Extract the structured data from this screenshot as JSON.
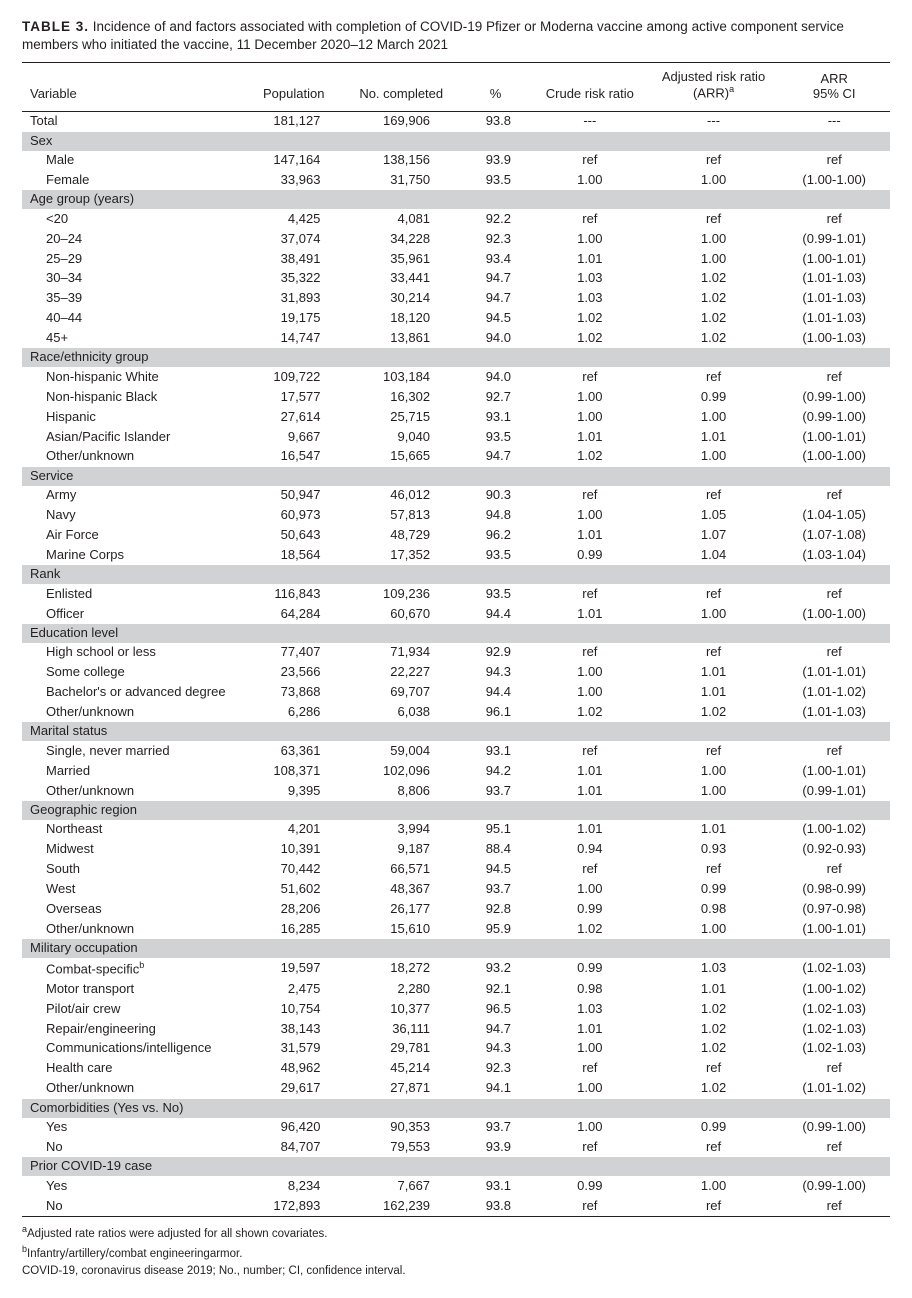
{
  "caption_label": "TABLE 3.",
  "caption_text": " Incidence of and factors associated with completion of COVID-19 Pfizer or Moderna vaccine among active component service members who initiated the vaccine, 11 December 2020–12 March 2021",
  "columns": {
    "variable": "Variable",
    "population": "Population",
    "completed": "No. completed",
    "pct": "%",
    "crude": "Crude risk ratio",
    "arr_l1": "Adjusted risk ratio",
    "arr_l2": "(ARR)",
    "ci_l1": "ARR",
    "ci_l2": "95% CI"
  },
  "sup_a": "a",
  "sup_b": "b",
  "total": {
    "label": "Total",
    "pop": "181,127",
    "comp": "169,906",
    "pct": "93.8",
    "crude": "---",
    "arr": "---",
    "ci": "---"
  },
  "sections": [
    {
      "title": "Sex",
      "rows": [
        {
          "label": "Male",
          "pop": "147,164",
          "comp": "138,156",
          "pct": "93.9",
          "crude": "ref",
          "arr": "ref",
          "ci": "ref"
        },
        {
          "label": "Female",
          "pop": "33,963",
          "comp": "31,750",
          "pct": "93.5",
          "crude": "1.00",
          "arr": "1.00",
          "ci": "(1.00-1.00)"
        }
      ]
    },
    {
      "title": "Age group (years)",
      "rows": [
        {
          "label": "<20",
          "pop": "4,425",
          "comp": "4,081",
          "pct": "92.2",
          "crude": "ref",
          "arr": "ref",
          "ci": "ref"
        },
        {
          "label": "20–24",
          "pop": "37,074",
          "comp": "34,228",
          "pct": "92.3",
          "crude": "1.00",
          "arr": "1.00",
          "ci": "(0.99-1.01)"
        },
        {
          "label": "25–29",
          "pop": "38,491",
          "comp": "35,961",
          "pct": "93.4",
          "crude": "1.01",
          "arr": "1.00",
          "ci": "(1.00-1.01)"
        },
        {
          "label": "30–34",
          "pop": "35,322",
          "comp": "33,441",
          "pct": "94.7",
          "crude": "1.03",
          "arr": "1.02",
          "ci": "(1.01-1.03)"
        },
        {
          "label": "35–39",
          "pop": "31,893",
          "comp": "30,214",
          "pct": "94.7",
          "crude": "1.03",
          "arr": "1.02",
          "ci": "(1.01-1.03)"
        },
        {
          "label": "40–44",
          "pop": "19,175",
          "comp": "18,120",
          "pct": "94.5",
          "crude": "1.02",
          "arr": "1.02",
          "ci": "(1.01-1.03)"
        },
        {
          "label": "45+",
          "pop": "14,747",
          "comp": "13,861",
          "pct": "94.0",
          "crude": "1.02",
          "arr": "1.02",
          "ci": "(1.00-1.03)"
        }
      ]
    },
    {
      "title": "Race/ethnicity group",
      "rows": [
        {
          "label": "Non-hispanic White",
          "pop": "109,722",
          "comp": "103,184",
          "pct": "94.0",
          "crude": "ref",
          "arr": "ref",
          "ci": "ref"
        },
        {
          "label": "Non-hispanic Black",
          "pop": "17,577",
          "comp": "16,302",
          "pct": "92.7",
          "crude": "1.00",
          "arr": "0.99",
          "ci": "(0.99-1.00)"
        },
        {
          "label": "Hispanic",
          "pop": "27,614",
          "comp": "25,715",
          "pct": "93.1",
          "crude": "1.00",
          "arr": "1.00",
          "ci": "(0.99-1.00)"
        },
        {
          "label": "Asian/Pacific Islander",
          "pop": "9,667",
          "comp": "9,040",
          "pct": "93.5",
          "crude": "1.01",
          "arr": "1.01",
          "ci": "(1.00-1.01)"
        },
        {
          "label": "Other/unknown",
          "pop": "16,547",
          "comp": "15,665",
          "pct": "94.7",
          "crude": "1.02",
          "arr": "1.00",
          "ci": "(1.00-1.00)"
        }
      ]
    },
    {
      "title": "Service",
      "rows": [
        {
          "label": "Army",
          "pop": "50,947",
          "comp": "46,012",
          "pct": "90.3",
          "crude": "ref",
          "arr": "ref",
          "ci": "ref"
        },
        {
          "label": "Navy",
          "pop": "60,973",
          "comp": "57,813",
          "pct": "94.8",
          "crude": "1.00",
          "arr": "1.05",
          "ci": "(1.04-1.05)"
        },
        {
          "label": "Air Force",
          "pop": "50,643",
          "comp": "48,729",
          "pct": "96.2",
          "crude": "1.01",
          "arr": "1.07",
          "ci": "(1.07-1.08)"
        },
        {
          "label": "Marine Corps",
          "pop": "18,564",
          "comp": "17,352",
          "pct": "93.5",
          "crude": "0.99",
          "arr": "1.04",
          "ci": "(1.03-1.04)"
        }
      ]
    },
    {
      "title": "Rank",
      "rows": [
        {
          "label": "Enlisted",
          "pop": "116,843",
          "comp": "109,236",
          "pct": "93.5",
          "crude": "ref",
          "arr": "ref",
          "ci": "ref"
        },
        {
          "label": "Officer",
          "pop": "64,284",
          "comp": "60,670",
          "pct": "94.4",
          "crude": "1.01",
          "arr": "1.00",
          "ci": "(1.00-1.00)"
        }
      ]
    },
    {
      "title": "Education level",
      "rows": [
        {
          "label": "High school or less",
          "pop": "77,407",
          "comp": "71,934",
          "pct": "92.9",
          "crude": "ref",
          "arr": "ref",
          "ci": "ref"
        },
        {
          "label": "Some college",
          "pop": "23,566",
          "comp": "22,227",
          "pct": "94.3",
          "crude": "1.00",
          "arr": "1.01",
          "ci": "(1.01-1.01)"
        },
        {
          "label": "Bachelor's or advanced degree",
          "pop": "73,868",
          "comp": "69,707",
          "pct": "94.4",
          "crude": "1.00",
          "arr": "1.01",
          "ci": "(1.01-1.02)"
        },
        {
          "label": "Other/unknown",
          "pop": "6,286",
          "comp": "6,038",
          "pct": "96.1",
          "crude": "1.02",
          "arr": "1.02",
          "ci": "(1.01-1.03)"
        }
      ]
    },
    {
      "title": "Marital status",
      "rows": [
        {
          "label": "Single, never married",
          "pop": "63,361",
          "comp": "59,004",
          "pct": "93.1",
          "crude": "ref",
          "arr": "ref",
          "ci": "ref"
        },
        {
          "label": "Married",
          "pop": "108,371",
          "comp": "102,096",
          "pct": "94.2",
          "crude": "1.01",
          "arr": "1.00",
          "ci": "(1.00-1.01)"
        },
        {
          "label": "Other/unknown",
          "pop": "9,395",
          "comp": "8,806",
          "pct": "93.7",
          "crude": "1.01",
          "arr": "1.00",
          "ci": "(0.99-1.01)"
        }
      ]
    },
    {
      "title": "Geographic region",
      "rows": [
        {
          "label": "Northeast",
          "pop": "4,201",
          "comp": "3,994",
          "pct": "95.1",
          "crude": "1.01",
          "arr": "1.01",
          "ci": "(1.00-1.02)"
        },
        {
          "label": "Midwest",
          "pop": "10,391",
          "comp": "9,187",
          "pct": "88.4",
          "crude": "0.94",
          "arr": "0.93",
          "ci": "(0.92-0.93)"
        },
        {
          "label": "South",
          "pop": "70,442",
          "comp": "66,571",
          "pct": "94.5",
          "crude": "ref",
          "arr": "ref",
          "ci": "ref"
        },
        {
          "label": "West",
          "pop": "51,602",
          "comp": "48,367",
          "pct": "93.7",
          "crude": "1.00",
          "arr": "0.99",
          "ci": "(0.98-0.99)"
        },
        {
          "label": "Overseas",
          "pop": "28,206",
          "comp": "26,177",
          "pct": "92.8",
          "crude": "0.99",
          "arr": "0.98",
          "ci": "(0.97-0.98)"
        },
        {
          "label": "Other/unknown",
          "pop": "16,285",
          "comp": "15,610",
          "pct": "95.9",
          "crude": "1.02",
          "arr": "1.00",
          "ci": "(1.00-1.01)"
        }
      ]
    },
    {
      "title": "Military occupation",
      "rows": [
        {
          "label": "Combat-specific",
          "sup": "b",
          "pop": "19,597",
          "comp": "18,272",
          "pct": "93.2",
          "crude": "0.99",
          "arr": "1.03",
          "ci": "(1.02-1.03)"
        },
        {
          "label": "Motor transport",
          "pop": "2,475",
          "comp": "2,280",
          "pct": "92.1",
          "crude": "0.98",
          "arr": "1.01",
          "ci": "(1.00-1.02)"
        },
        {
          "label": "Pilot/air crew",
          "pop": "10,754",
          "comp": "10,377",
          "pct": "96.5",
          "crude": "1.03",
          "arr": "1.02",
          "ci": "(1.02-1.03)"
        },
        {
          "label": "Repair/engineering",
          "pop": "38,143",
          "comp": "36,111",
          "pct": "94.7",
          "crude": "1.01",
          "arr": "1.02",
          "ci": "(1.02-1.03)"
        },
        {
          "label": "Communications/intelligence",
          "pop": "31,579",
          "comp": "29,781",
          "pct": "94.3",
          "crude": "1.00",
          "arr": "1.02",
          "ci": "(1.02-1.03)"
        },
        {
          "label": "Health care",
          "pop": "48,962",
          "comp": "45,214",
          "pct": "92.3",
          "crude": "ref",
          "arr": "ref",
          "ci": "ref"
        },
        {
          "label": "Other/unknown",
          "pop": "29,617",
          "comp": "27,871",
          "pct": "94.1",
          "crude": "1.00",
          "arr": "1.02",
          "ci": "(1.01-1.02)"
        }
      ]
    },
    {
      "title": "Comorbidities (Yes vs. No)",
      "rows": [
        {
          "label": "Yes",
          "pop": "96,420",
          "comp": "90,353",
          "pct": "93.7",
          "crude": "1.00",
          "arr": "0.99",
          "ci": "(0.99-1.00)"
        },
        {
          "label": "No",
          "pop": "84,707",
          "comp": "79,553",
          "pct": "93.9",
          "crude": "ref",
          "arr": "ref",
          "ci": "ref"
        }
      ]
    },
    {
      "title": "Prior COVID-19 case",
      "rows": [
        {
          "label": "Yes",
          "pop": "8,234",
          "comp": "7,667",
          "pct": "93.1",
          "crude": "0.99",
          "arr": "1.00",
          "ci": "(0.99-1.00)"
        },
        {
          "label": "No",
          "pop": "172,893",
          "comp": "162,239",
          "pct": "93.8",
          "crude": "ref",
          "arr": "ref",
          "ci": "ref"
        }
      ]
    }
  ],
  "footnotes": {
    "a": "Adjusted rate ratios were adjusted for all shown covariates.",
    "b": "Infantry/artillery/combat engineeringarmor.",
    "abbrev": "COVID-19, coronavirus disease 2019; No., number; CI, confidence interval."
  }
}
